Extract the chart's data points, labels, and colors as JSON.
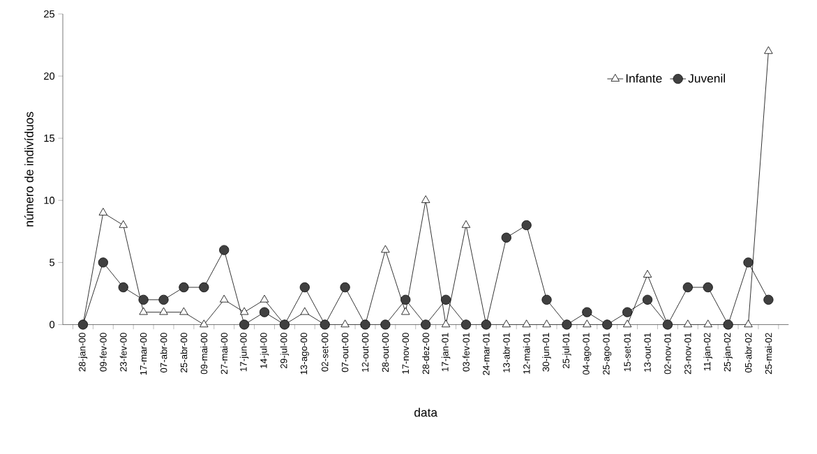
{
  "chart_data": {
    "type": "line",
    "xlabel": "data",
    "ylabel": "número de indivíduos",
    "categories": [
      "28-jan-00",
      "09-fev-00",
      "23-fev-00",
      "17-mar-00",
      "07-abr-00",
      "25-abr-00",
      "09-mai-00",
      "27-mai-00",
      "17-jun-00",
      "14-jul-00",
      "29-jul-00",
      "13-ago-00",
      "02-set-00",
      "07-out-00",
      "12-out-00",
      "28-out-00",
      "17-nov-00",
      "28-dez-00",
      "17-jan-01",
      "03-fev-01",
      "24-mar-01",
      "13-abr-01",
      "12-mai-01",
      "30-jun-01",
      "25-jul-01",
      "04-ago-01",
      "25-ago-01",
      "15-set-01",
      "13-out-01",
      "02-nov-01",
      "23-nov-01",
      "11-jan-02",
      "25-jan-02",
      "05-abr-02",
      "25-mai-02"
    ],
    "series": [
      {
        "name": "Infante",
        "color": "#ffffff",
        "marker": "triangle",
        "values": [
          0,
          9,
          8,
          1,
          1,
          1,
          0,
          2,
          1,
          2,
          0,
          1,
          0,
          0,
          0,
          6,
          1,
          10,
          0,
          8,
          0,
          0,
          0,
          0,
          0,
          0,
          0,
          0,
          4,
          0,
          0,
          0,
          0,
          0,
          22
        ]
      },
      {
        "name": "Juvenil",
        "color": "#404040",
        "marker": "circle",
        "values": [
          0,
          5,
          3,
          2,
          2,
          3,
          3,
          6,
          0,
          1,
          0,
          3,
          0,
          3,
          0,
          0,
          2,
          0,
          2,
          0,
          0,
          7,
          8,
          2,
          0,
          1,
          0,
          1,
          2,
          0,
          3,
          3,
          0,
          5,
          2
        ]
      }
    ],
    "ylim": [
      0,
      25
    ],
    "yticks": [
      0,
      5,
      10,
      15,
      20,
      25
    ],
    "grid": false,
    "legend": "top right",
    "line_style": "solid"
  }
}
